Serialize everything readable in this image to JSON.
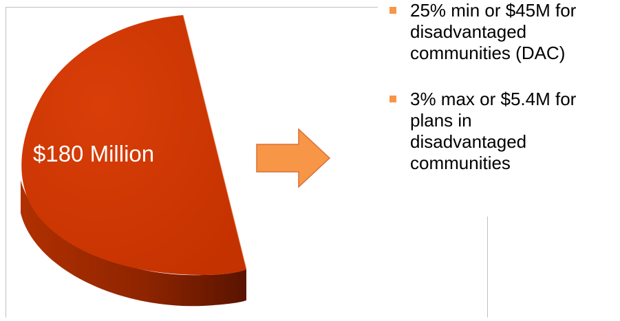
{
  "colors": {
    "pie_top": "#cc3600",
    "pie_side_dark": "#7a1d00",
    "arrow_fill": "#f79646",
    "arrow_stroke": "#d9703a",
    "bullet": "#f79646"
  },
  "pie": {
    "label": "$180 Million"
  },
  "arrow": {
    "icon": "right-arrow-icon"
  },
  "bullets": [
    {
      "icon": "square-bullet-icon",
      "lines": [
        "25% min or $45M for",
        "disadvantaged",
        "communities (DAC)"
      ]
    },
    {
      "icon": "square-bullet-icon",
      "lines": [
        "3% max or $5.4M for",
        "plans in",
        "disadvantaged",
        "communities"
      ]
    }
  ]
}
